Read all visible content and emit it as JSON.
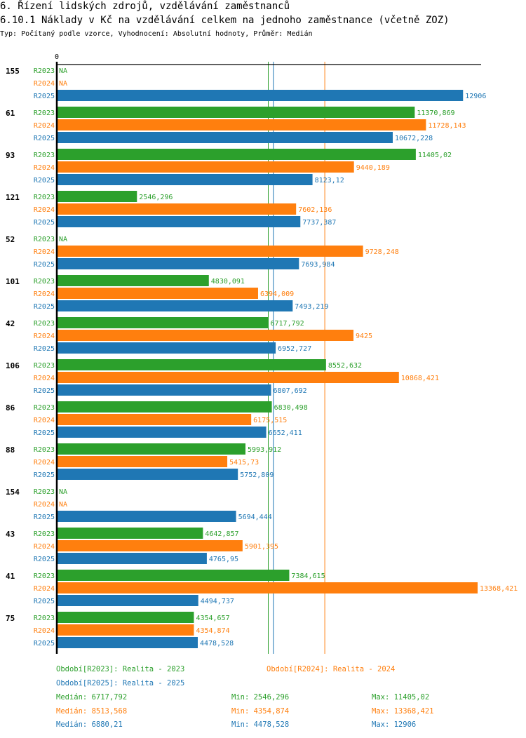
{
  "header": {
    "title": "6. Řízení lidských zdrojů, vzdělávání zaměstnanců",
    "chart_title": "6.10.1 Náklady v Kč na vzdělávání celkem na jednoho zaměstnance (včetně ZOZ)",
    "subtitle": "Typ: Počítaný podle vzorce, Vyhodnocení: Absolutní hodnoty, Průměr: Medián"
  },
  "colors": {
    "R2023": "#2ca02c",
    "R2024": "#ff7f0e",
    "R2025": "#1f77b4",
    "axis": "#000000"
  },
  "legend": {
    "periods": [
      {
        "key": "R2023",
        "label": "Období[R2023]: Realita - 2023"
      },
      {
        "key": "R2024",
        "label": "Období[R2024]: Realita - 2024"
      },
      {
        "key": "R2025",
        "label": "Období[R2025]: Realita - 2025"
      }
    ],
    "stats": [
      {
        "key": "R2023",
        "median": "Medián: 6717,792",
        "min": "Min: 2546,296",
        "max": "Max: 11405,02"
      },
      {
        "key": "R2024",
        "median": "Medián: 8513,568",
        "min": "Min: 4354,874",
        "max": "Max: 13368,421"
      },
      {
        "key": "R2025",
        "median": "Medián: 6880,21",
        "min": "Min: 4478,528",
        "max": "Max: 12906"
      }
    ]
  },
  "chart_data": {
    "type": "bar",
    "orientation": "horizontal",
    "title": "6.10.1 Náklady v Kč na vzdělávání celkem na jednoho zaměstnance (včetně ZOZ)",
    "xlabel": "",
    "ylabel": "",
    "axis_zero_label": "0",
    "xlim": [
      0,
      13368.421
    ],
    "series_keys": [
      "R2023",
      "R2024",
      "R2025"
    ],
    "na_label": "NA",
    "medians": {
      "R2023": 6717.792,
      "R2024": 8513.568,
      "R2025": 6880.21
    },
    "categories": [
      "155",
      "61",
      "93",
      "121",
      "52",
      "101",
      "42",
      "106",
      "86",
      "88",
      "154",
      "43",
      "41",
      "75"
    ],
    "series": [
      {
        "name": "R2023",
        "values": [
          null,
          11370.869,
          11405.02,
          2546.296,
          null,
          4830.091,
          6717.792,
          8552.632,
          6830.498,
          5993.912,
          null,
          4642.857,
          7384.615,
          4354.657
        ],
        "labels": [
          "NA",
          "11370,869",
          "11405,02",
          "2546,296",
          "NA",
          "4830,091",
          "6717,792",
          "8552,632",
          "6830,498",
          "5993,912",
          "NA",
          "4642,857",
          "7384,615",
          "4354,657"
        ]
      },
      {
        "name": "R2024",
        "values": [
          null,
          11728.143,
          9440.189,
          7602.136,
          9728.248,
          6394.009,
          9425,
          10868.421,
          6175.515,
          5415.73,
          null,
          5901.395,
          13368.421,
          4354.874
        ],
        "labels": [
          "NA",
          "11728,143",
          "9440,189",
          "7602,136",
          "9728,248",
          "6394,009",
          "9425",
          "10868,421",
          "6175,515",
          "5415,73",
          "NA",
          "5901,395",
          "13368,421",
          "4354,874"
        ]
      },
      {
        "name": "R2025",
        "values": [
          12906,
          10672.228,
          8123.12,
          7737.387,
          7693.984,
          7493.219,
          6952.727,
          6807.692,
          6652.411,
          5752.809,
          5694.444,
          4765.95,
          4494.737,
          4478.528
        ],
        "labels": [
          "12906",
          "10672,228",
          "8123,12",
          "7737,387",
          "7693,984",
          "7493,219",
          "6952,727",
          "6807,692",
          "6652,411",
          "5752,809",
          "5694,444",
          "4765,95",
          "4494,737",
          "4478,528"
        ]
      }
    ]
  }
}
